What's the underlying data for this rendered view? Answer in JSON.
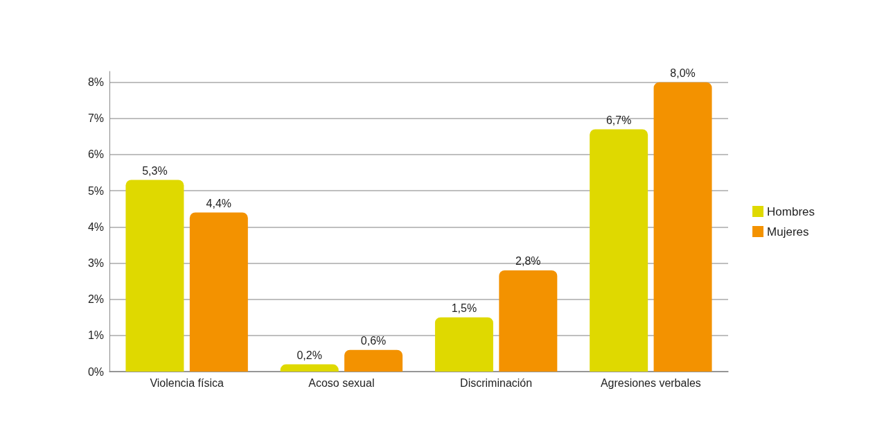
{
  "chart_data": {
    "type": "bar",
    "categories": [
      "Violencia física",
      "Acoso sexual",
      "Discriminación",
      "Agresiones verbales"
    ],
    "series": [
      {
        "name": "Hombres",
        "color": "#dfd900",
        "values": [
          5.3,
          0.2,
          1.5,
          6.7
        ],
        "value_labels": [
          "5,3%",
          "0,2%",
          "1,5%",
          "6,7%"
        ]
      },
      {
        "name": "Mujeres",
        "color": "#f39200",
        "values": [
          4.4,
          0.6,
          2.8,
          8.0
        ],
        "value_labels": [
          "4,4%",
          "0,6%",
          "2,8%",
          "8,0%"
        ]
      }
    ],
    "ylim": [
      0,
      8.3
    ],
    "yticks": [
      {
        "value": 0,
        "label": "0%"
      },
      {
        "value": 1,
        "label": "1%"
      },
      {
        "value": 2,
        "label": "2%"
      },
      {
        "value": 3,
        "label": "3%"
      },
      {
        "value": 4,
        "label": "4%"
      },
      {
        "value": 5,
        "label": "5%"
      },
      {
        "value": 6,
        "label": "6%"
      },
      {
        "value": 7,
        "label": "7%"
      },
      {
        "value": 8,
        "label": "8%"
      }
    ],
    "grid": "y",
    "legend": "right"
  }
}
